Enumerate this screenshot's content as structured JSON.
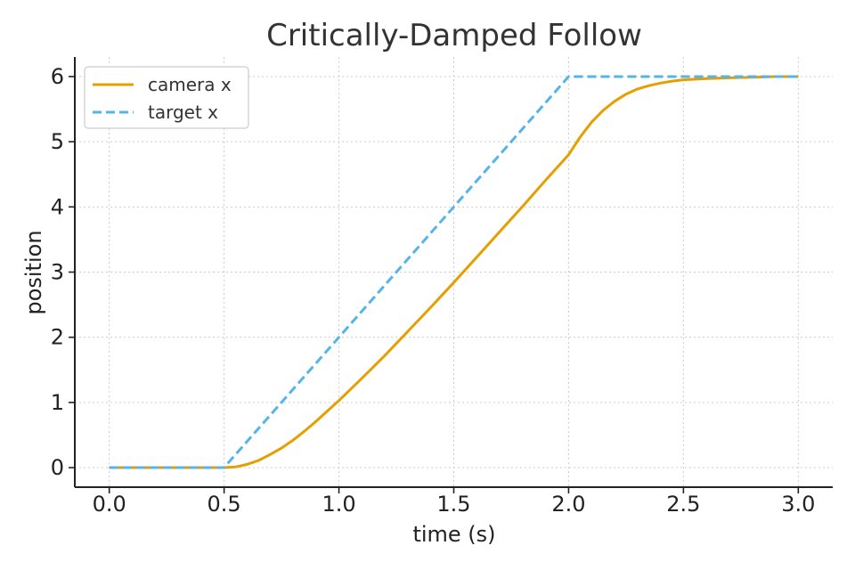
{
  "chart_data": {
    "type": "line",
    "title": "Critically-Damped Follow",
    "xlabel": "time (s)",
    "ylabel": "position",
    "xlim": [
      -0.15,
      3.15
    ],
    "ylim": [
      -0.3,
      6.3
    ],
    "xticks": [
      0.0,
      0.5,
      1.0,
      1.5,
      2.0,
      2.5,
      3.0
    ],
    "xtick_labels": [
      "0.0",
      "0.5",
      "1.0",
      "1.5",
      "2.0",
      "2.5",
      "3.0"
    ],
    "yticks": [
      0,
      1,
      2,
      3,
      4,
      5,
      6
    ],
    "ytick_labels": [
      "0",
      "1",
      "2",
      "3",
      "4",
      "5",
      "6"
    ],
    "grid": true,
    "legend_position": "top-left",
    "series": [
      {
        "name": "camera x",
        "color": "#E69F00",
        "style": "solid",
        "x": [
          0.0,
          0.5,
          0.55,
          0.6,
          0.65,
          0.7,
          0.75,
          0.8,
          0.85,
          0.9,
          0.95,
          1.0,
          1.1,
          1.2,
          1.3,
          1.4,
          1.5,
          1.6,
          1.7,
          1.8,
          1.9,
          2.0,
          2.05,
          2.1,
          2.15,
          2.2,
          2.25,
          2.3,
          2.35,
          2.4,
          2.45,
          2.5,
          2.6,
          2.7,
          2.8,
          2.9,
          3.0
        ],
        "y": [
          0.0,
          0.0,
          0.01,
          0.05,
          0.11,
          0.2,
          0.3,
          0.42,
          0.56,
          0.71,
          0.87,
          1.03,
          1.37,
          1.72,
          2.09,
          2.46,
          2.84,
          3.23,
          3.62,
          4.01,
          4.41,
          4.8,
          5.07,
          5.3,
          5.48,
          5.62,
          5.73,
          5.81,
          5.86,
          5.9,
          5.93,
          5.95,
          5.97,
          5.98,
          5.99,
          6.0,
          6.0
        ]
      },
      {
        "name": "target x",
        "color": "#56B4E9",
        "style": "dashed",
        "x": [
          0.0,
          0.5,
          2.0,
          3.0
        ],
        "y": [
          0.0,
          0.0,
          6.0,
          6.0
        ]
      }
    ]
  }
}
